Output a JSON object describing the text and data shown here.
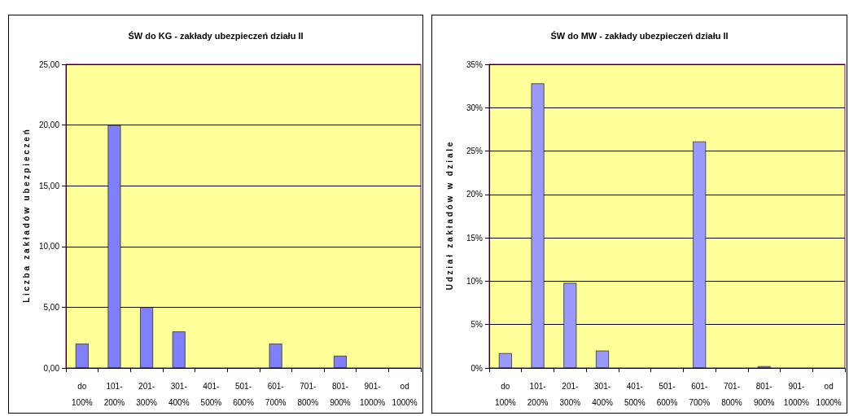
{
  "chart_data": [
    {
      "type": "bar",
      "title": "ŚW do KG - zakłady ubezpieczeń działu II",
      "ylabel": "L i c z b a   z a k ł a d ó w   u b e z p i e c z e ń",
      "categories": [
        "do\n100%",
        "101-\n200%",
        "201-\n300%",
        "301-\n400%",
        "401-\n500%",
        "501-\n600%",
        "601-\n700%",
        "701-\n800%",
        "801-\n900%",
        "901-\n1000%",
        "od\n1000%"
      ],
      "values": [
        2,
        20,
        5,
        3,
        0,
        0,
        2,
        0,
        1,
        0,
        0
      ],
      "color": "#8080ff",
      "ylim": [
        0,
        25
      ],
      "yticks": [
        {
          "value": 0,
          "label": "0,00"
        },
        {
          "value": 5,
          "label": "5,00"
        },
        {
          "value": 10,
          "label": "10,00"
        },
        {
          "value": 15,
          "label": "15,00"
        },
        {
          "value": 20,
          "label": "20,00"
        },
        {
          "value": 25,
          "label": "25,00"
        }
      ],
      "grid": "y"
    },
    {
      "type": "bar",
      "title": "ŚW do MW - zakłady ubezpieczeń działu II",
      "ylabel": "U d z i a ł   z a k ł a d ó w   w   d z i a l e",
      "categories": [
        "do\n100%",
        "101-\n200%",
        "201-\n300%",
        "301-\n400%",
        "401-\n500%",
        "501-\n600%",
        "601-\n700%",
        "701-\n800%",
        "801-\n900%",
        "901-\n1000%",
        "od\n1000%"
      ],
      "values": [
        1.7,
        32.8,
        9.8,
        2,
        0,
        0,
        26.1,
        0,
        0.2,
        0,
        0
      ],
      "color": "#9999ff",
      "ylim": [
        0,
        35
      ],
      "yticks": [
        {
          "value": 0,
          "label": "0%"
        },
        {
          "value": 5,
          "label": "5%"
        },
        {
          "value": 10,
          "label": "10%"
        },
        {
          "value": 15,
          "label": "15%"
        },
        {
          "value": 20,
          "label": "20%"
        },
        {
          "value": 25,
          "label": "25%"
        },
        {
          "value": 30,
          "label": "30%"
        },
        {
          "value": 35,
          "label": "35%"
        }
      ],
      "grid": "y"
    }
  ]
}
